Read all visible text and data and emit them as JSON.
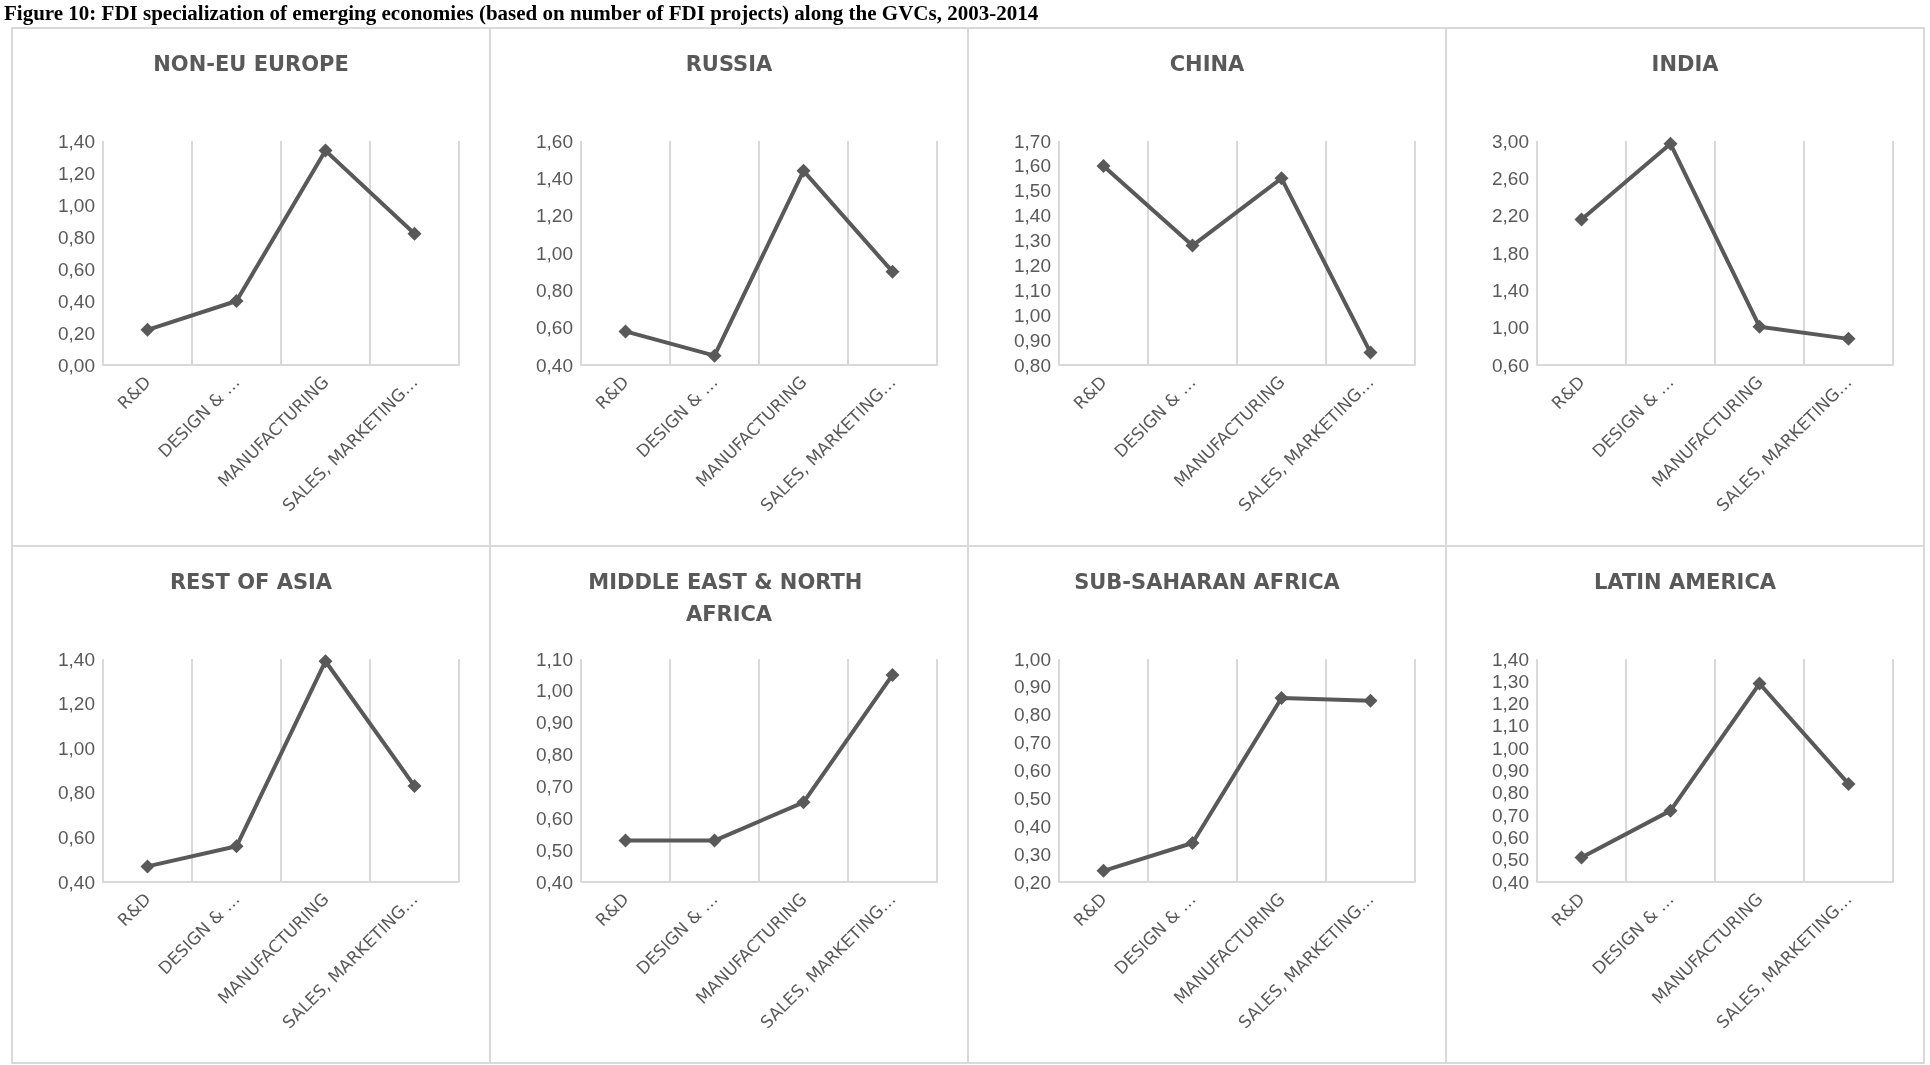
{
  "chart_data": [
    {
      "type": "line",
      "title": "NON-EU EUROPE",
      "annotations": [
        "Figure 10: FDI specialization of emerging economies (based on number of FDI projects) along the GVCs, 2003-2014"
      ],
      "categories": [
        "R&D",
        "DESIGN & …",
        "MANUFACTURING",
        "SALES, MARKETING…"
      ],
      "values": [
        0.22,
        0.4,
        1.34,
        0.82
      ],
      "color": "#595959",
      "marker": "diamond",
      "grid": "x",
      "ylim": [
        0,
        1.4
      ],
      "yticks": [
        {
          "value": 0,
          "label": "0,00"
        },
        {
          "value": 0.2,
          "label": "0,20"
        },
        {
          "value": 0.4,
          "label": "0,40"
        },
        {
          "value": 0.6,
          "label": "0,60"
        },
        {
          "value": 0.8,
          "label": "0,80"
        },
        {
          "value": 1.0,
          "label": "1,00"
        },
        {
          "value": 1.2,
          "label": "1,20"
        },
        {
          "value": 1.4,
          "label": "1,40"
        }
      ]
    },
    {
      "type": "line",
      "title": "RUSSIA",
      "categories": [
        "R&D",
        "DESIGN & …",
        "MANUFACTURING",
        "SALES, MARKETING…"
      ],
      "values": [
        0.58,
        0.45,
        1.44,
        0.9
      ],
      "color": "#595959",
      "marker": "diamond",
      "grid": "x",
      "ylim": [
        0.4,
        1.6
      ],
      "yticks": [
        {
          "value": 0.4,
          "label": "0,40"
        },
        {
          "value": 0.6,
          "label": "0,60"
        },
        {
          "value": 0.8,
          "label": "0,80"
        },
        {
          "value": 1.0,
          "label": "1,00"
        },
        {
          "value": 1.2,
          "label": "1,20"
        },
        {
          "value": 1.4,
          "label": "1,40"
        },
        {
          "value": 1.6,
          "label": "1,60"
        }
      ]
    },
    {
      "type": "line",
      "title": "CHINA",
      "categories": [
        "R&D",
        "DESIGN & …",
        "MANUFACTURING",
        "SALES, MARKETING…"
      ],
      "values": [
        1.6,
        1.28,
        1.55,
        0.85
      ],
      "color": "#595959",
      "marker": "diamond",
      "grid": "x",
      "ylim": [
        0.8,
        1.7
      ],
      "yticks": [
        {
          "value": 0.8,
          "label": "0,80"
        },
        {
          "value": 0.9,
          "label": "0,90"
        },
        {
          "value": 1.0,
          "label": "1,00"
        },
        {
          "value": 1.1,
          "label": "1,10"
        },
        {
          "value": 1.2,
          "label": "1,20"
        },
        {
          "value": 1.3,
          "label": "1,30"
        },
        {
          "value": 1.4,
          "label": "1,40"
        },
        {
          "value": 1.5,
          "label": "1,50"
        },
        {
          "value": 1.6,
          "label": "1,60"
        },
        {
          "value": 1.7,
          "label": "1,70"
        }
      ]
    },
    {
      "type": "line",
      "title": "INDIA",
      "categories": [
        "R&D",
        "DESIGN & …",
        "MANUFACTURING",
        "SALES, MARKETING…"
      ],
      "values": [
        2.16,
        2.97,
        1.01,
        0.88
      ],
      "color": "#595959",
      "marker": "diamond",
      "grid": "x",
      "ylim": [
        0.6,
        3.0
      ],
      "yticks": [
        {
          "value": 0.6,
          "label": "0,60"
        },
        {
          "value": 1.0,
          "label": "1,00"
        },
        {
          "value": 1.4,
          "label": "1,40"
        },
        {
          "value": 1.8,
          "label": "1,80"
        },
        {
          "value": 2.2,
          "label": "2,20"
        },
        {
          "value": 2.6,
          "label": "2,60"
        },
        {
          "value": 3.0,
          "label": "3,00"
        }
      ]
    },
    {
      "type": "line",
      "title": "REST OF ASIA",
      "categories": [
        "R&D",
        "DESIGN & …",
        "MANUFACTURING",
        "SALES, MARKETING…"
      ],
      "values": [
        0.47,
        0.56,
        1.39,
        0.83
      ],
      "color": "#595959",
      "marker": "diamond",
      "grid": "x",
      "ylim": [
        0.4,
        1.4
      ],
      "yticks": [
        {
          "value": 0.4,
          "label": "0,40"
        },
        {
          "value": 0.6,
          "label": "0,60"
        },
        {
          "value": 0.8,
          "label": "0,80"
        },
        {
          "value": 1.0,
          "label": "1,00"
        },
        {
          "value": 1.2,
          "label": "1,20"
        },
        {
          "value": 1.4,
          "label": "1,40"
        }
      ]
    },
    {
      "type": "line",
      "title": "MIDDLE EAST & NORTH AFRICA",
      "categories": [
        "R&D",
        "DESIGN & …",
        "MANUFACTURING",
        "SALES, MARKETING…"
      ],
      "values": [
        0.53,
        0.53,
        0.65,
        1.05
      ],
      "color": "#595959",
      "marker": "diamond",
      "grid": "x",
      "ylim": [
        0.4,
        1.1
      ],
      "yticks": [
        {
          "value": 0.4,
          "label": "0,40"
        },
        {
          "value": 0.5,
          "label": "0,50"
        },
        {
          "value": 0.6,
          "label": "0,60"
        },
        {
          "value": 0.7,
          "label": "0,70"
        },
        {
          "value": 0.8,
          "label": "0,80"
        },
        {
          "value": 0.9,
          "label": "0,90"
        },
        {
          "value": 1.0,
          "label": "1,00"
        },
        {
          "value": 1.1,
          "label": "1,10"
        }
      ]
    },
    {
      "type": "line",
      "title": "SUB-SAHARAN AFRICA",
      "categories": [
        "R&D",
        "DESIGN & …",
        "MANUFACTURING",
        "SALES, MARKETING…"
      ],
      "values": [
        0.24,
        0.34,
        0.86,
        0.85
      ],
      "color": "#595959",
      "marker": "diamond",
      "grid": "x",
      "ylim": [
        0.2,
        1.0
      ],
      "yticks": [
        {
          "value": 0.2,
          "label": "0,20"
        },
        {
          "value": 0.3,
          "label": "0,30"
        },
        {
          "value": 0.4,
          "label": "0,40"
        },
        {
          "value": 0.5,
          "label": "0,50"
        },
        {
          "value": 0.6,
          "label": "0,60"
        },
        {
          "value": 0.7,
          "label": "0,70"
        },
        {
          "value": 0.8,
          "label": "0,80"
        },
        {
          "value": 0.9,
          "label": "0,90"
        },
        {
          "value": 1.0,
          "label": "1,00"
        }
      ]
    },
    {
      "type": "line",
      "title": "LATIN AMERICA",
      "categories": [
        "R&D",
        "DESIGN & …",
        "MANUFACTURING",
        "SALES, MARKETING…"
      ],
      "values": [
        0.51,
        0.72,
        1.29,
        0.84
      ],
      "color": "#595959",
      "marker": "diamond",
      "grid": "x",
      "ylim": [
        0.4,
        1.4
      ],
      "yticks": [
        {
          "value": 0.4,
          "label": "0,40"
        },
        {
          "value": 0.5,
          "label": "0,50"
        },
        {
          "value": 0.6,
          "label": "0,60"
        },
        {
          "value": 0.7,
          "label": "0,70"
        },
        {
          "value": 0.8,
          "label": "0,80"
        },
        {
          "value": 0.9,
          "label": "0,90"
        },
        {
          "value": 1.0,
          "label": "1,00"
        },
        {
          "value": 1.1,
          "label": "1,10"
        },
        {
          "value": 1.2,
          "label": "1,20"
        },
        {
          "value": 1.3,
          "label": "1,30"
        },
        {
          "value": 1.4,
          "label": "1,40"
        }
      ]
    }
  ]
}
